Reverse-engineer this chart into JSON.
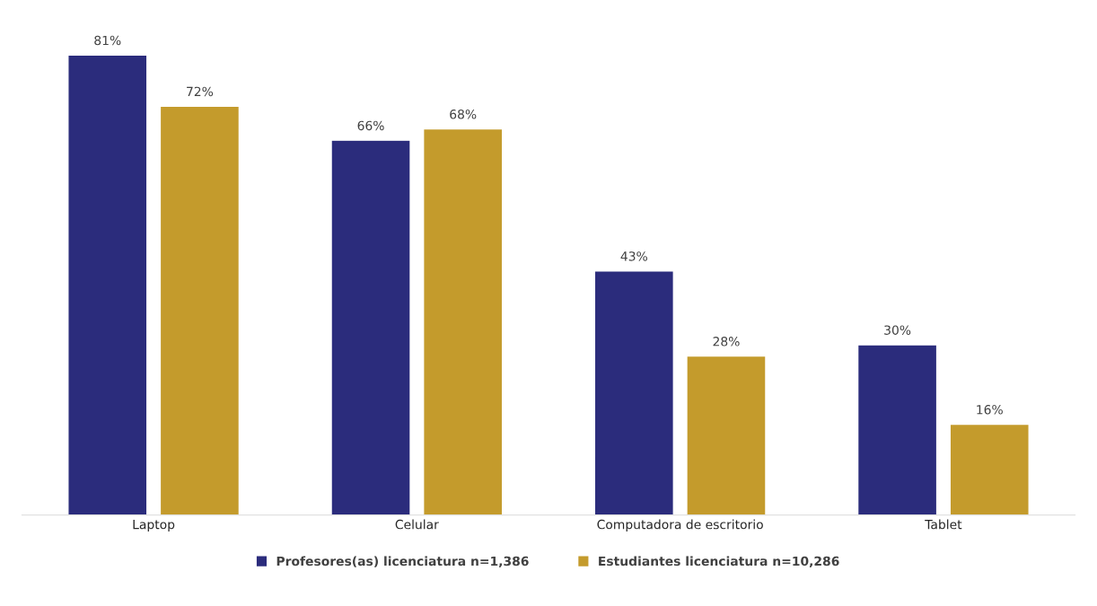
{
  "chart_data": {
    "type": "bar",
    "categories": [
      "Laptop",
      "Celular",
      "Computadora de escritorio",
      "Tablet"
    ],
    "series": [
      {
        "name": "Profesores(as) licenciatura n=1,386",
        "color": "#2b2c7c",
        "values": [
          81,
          66,
          43,
          30
        ],
        "value_labels": [
          "81%",
          "66%",
          "43%",
          "30%"
        ]
      },
      {
        "name": "Estudiantes licenciatura n=10,286",
        "color": "#c49b2c",
        "values": [
          72,
          68,
          28,
          16
        ],
        "value_labels": [
          "72%",
          "68%",
          "28%",
          "16%"
        ]
      }
    ],
    "legend": "bottom",
    "grid": false,
    "tick_labels": "x"
  }
}
